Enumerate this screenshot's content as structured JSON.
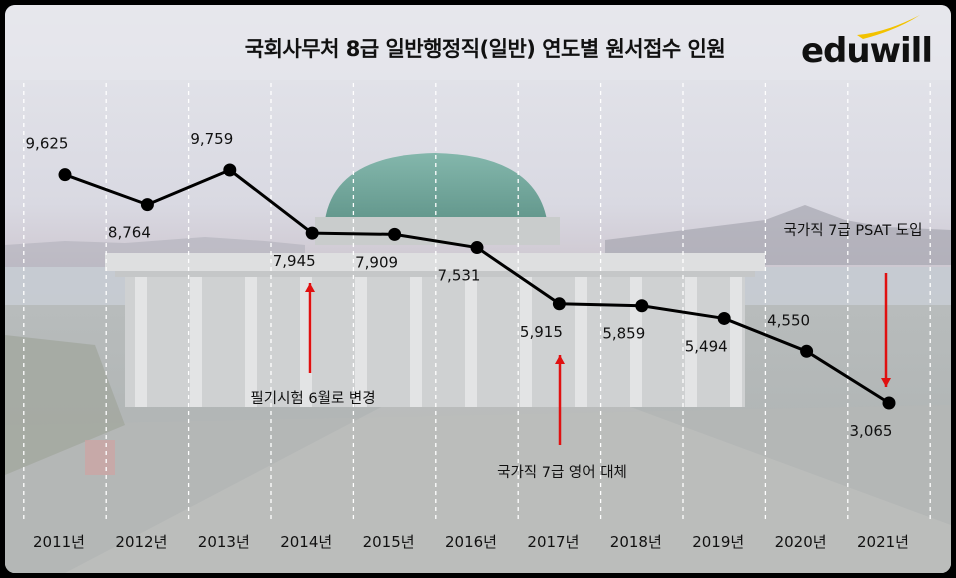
{
  "chart_data": {
    "type": "line",
    "title": "국회사무처 8급 일반행정직(일반) 연도별 원서접수 인원",
    "categories": [
      "2011년",
      "2012년",
      "2013년",
      "2014년",
      "2015년",
      "2016년",
      "2017년",
      "2018년",
      "2019년",
      "2020년",
      "2021년"
    ],
    "values": [
      9625,
      8764,
      9759,
      7945,
      7909,
      7531,
      5915,
      5859,
      5494,
      4550,
      3065
    ],
    "value_labels": [
      "9,625",
      "8,764",
      "9,759",
      "7,945",
      "7,909",
      "7,531",
      "5,915",
      "5,859",
      "5,494",
      "4,550",
      "3,065"
    ],
    "xlabel": "",
    "ylabel": "",
    "grid": "vertical dashed",
    "annotations": [
      {
        "text": "필기시험 6월로 변경",
        "category": "2014년",
        "arrow": "up"
      },
      {
        "text": "국가직 7급 영어 대체",
        "category": "2017년",
        "arrow": "up"
      },
      {
        "text": "국가직 7급 PSAT 도입",
        "category": "2021년",
        "arrow": "down"
      }
    ],
    "line_color": "#000000",
    "arrow_color": "#e01010"
  },
  "brand": {
    "logo_text": "eduwill",
    "swoosh_color": "#f2c200"
  }
}
